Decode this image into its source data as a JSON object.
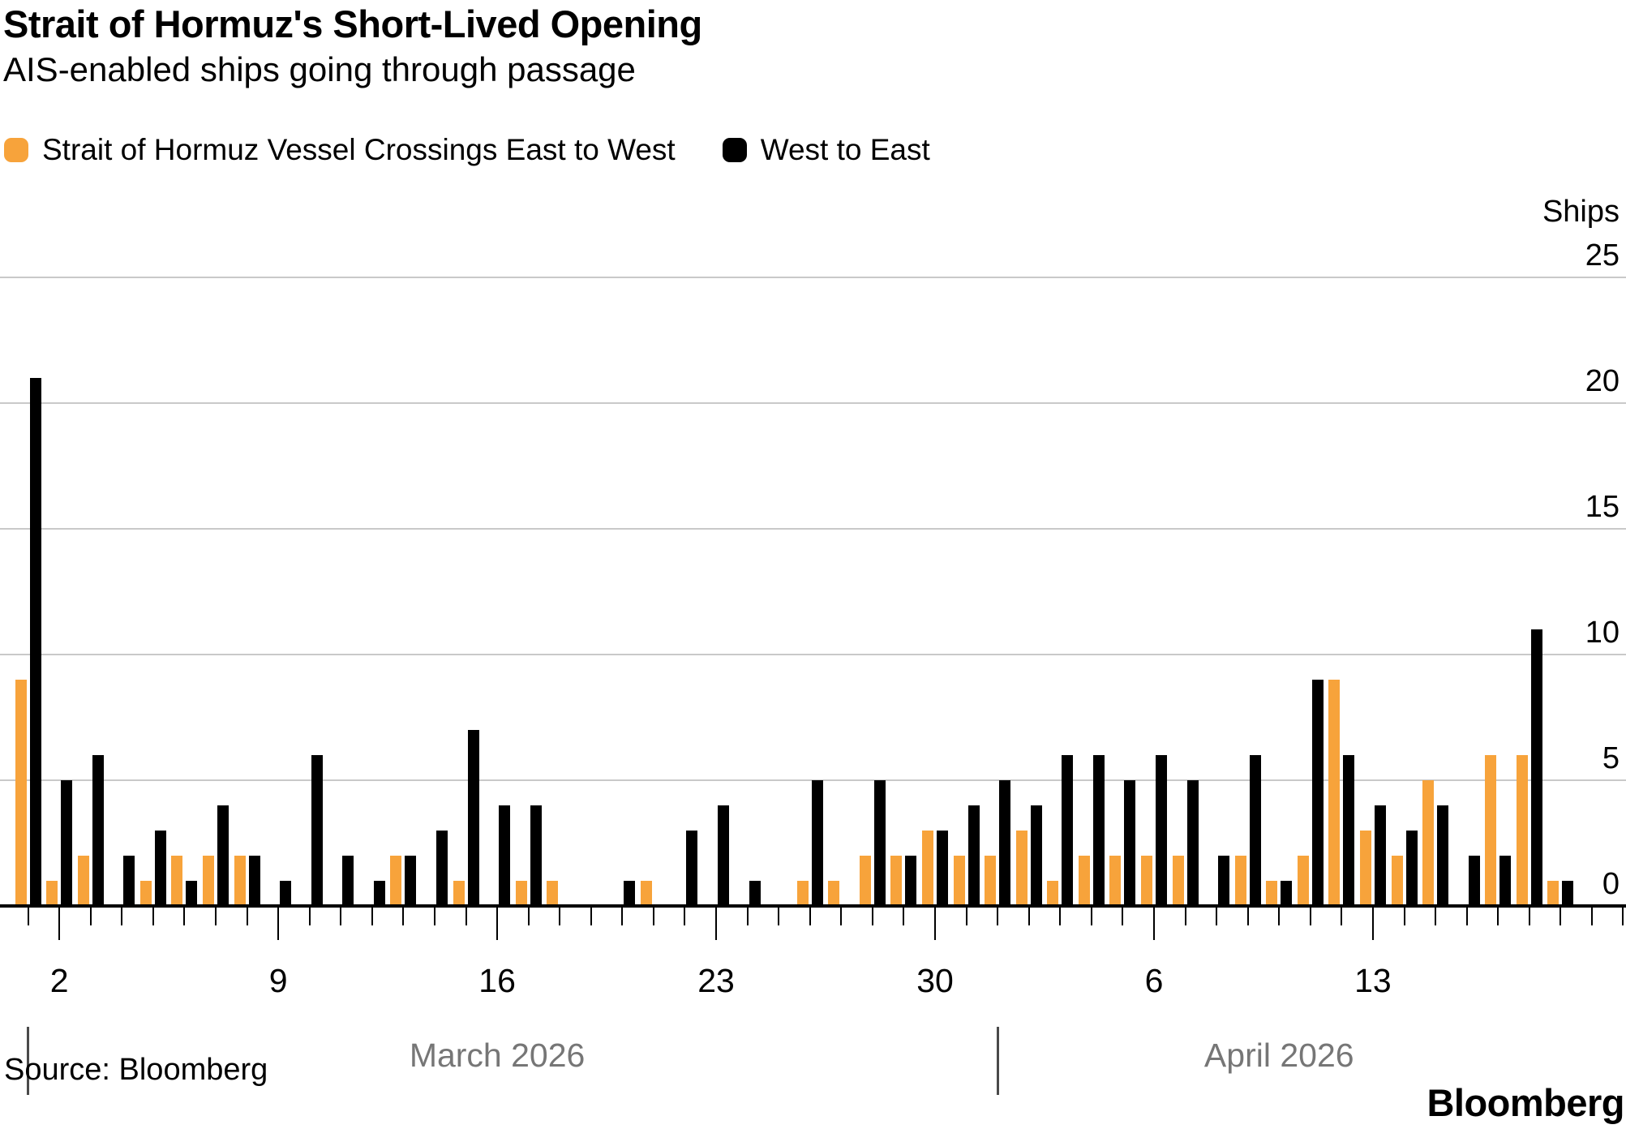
{
  "header": {
    "title": "Strait of Hormuz's Short-Lived Opening",
    "subtitle": "AIS-enabled ships going through passage"
  },
  "footer": {
    "source": "Source: Bloomberg",
    "brand": "Bloomberg"
  },
  "chart_data": {
    "type": "bar",
    "title": "Strait of Hormuz's Short-Lived Opening",
    "subtitle": "AIS-enabled ships going through passage",
    "colors": {
      "east_to_west": "#F7A33B",
      "west_to_east": "#000000",
      "gridline": "#C9C9C9",
      "axis": "#000000",
      "month_label": "#767676"
    },
    "legend": [
      {
        "series": "east_to_west",
        "label": "Strait of Hormuz Vessel Crossings East to West",
        "color": "#F7A33B"
      },
      {
        "series": "west_to_east",
        "label": "West to East",
        "color": "#000000"
      }
    ],
    "y_axis": {
      "label": "Ships",
      "ticks": [
        0,
        5,
        10,
        15,
        20,
        25
      ],
      "max": 25,
      "grid": true
    },
    "x_axis": {
      "tick_labels": [
        {
          "label": "2",
          "index": 1
        },
        {
          "label": "9",
          "index": 8
        },
        {
          "label": "16",
          "index": 15
        },
        {
          "label": "23",
          "index": 22
        },
        {
          "label": "30",
          "index": 29
        },
        {
          "label": "6",
          "index": 36
        },
        {
          "label": "13",
          "index": 43
        }
      ],
      "months": [
        {
          "label": "March 2026",
          "start_index": 0
        },
        {
          "label": "April 2026",
          "start_index": 31
        }
      ],
      "total_tick_count": 52
    },
    "series": [
      {
        "name": "Strait of Hormuz Vessel Crossings East to West",
        "key": "east_to_west"
      },
      {
        "name": "West to East",
        "key": "west_to_east"
      }
    ],
    "days": [
      {
        "date": "2026-03-01",
        "east_to_west": 9,
        "west_to_east": 21
      },
      {
        "date": "2026-03-02",
        "east_to_west": 1,
        "west_to_east": 5
      },
      {
        "date": "2026-03-03",
        "east_to_west": 2,
        "west_to_east": 6
      },
      {
        "date": "2026-03-04",
        "east_to_west": 0,
        "west_to_east": 2
      },
      {
        "date": "2026-03-05",
        "east_to_west": 1,
        "west_to_east": 3
      },
      {
        "date": "2026-03-06",
        "east_to_west": 2,
        "west_to_east": 1
      },
      {
        "date": "2026-03-07",
        "east_to_west": 2,
        "west_to_east": 4
      },
      {
        "date": "2026-03-08",
        "east_to_west": 2,
        "west_to_east": 2
      },
      {
        "date": "2026-03-09",
        "east_to_west": 0,
        "west_to_east": 1
      },
      {
        "date": "2026-03-10",
        "east_to_west": 0,
        "west_to_east": 6
      },
      {
        "date": "2026-03-11",
        "east_to_west": 0,
        "west_to_east": 2
      },
      {
        "date": "2026-03-12",
        "east_to_west": 0,
        "west_to_east": 1
      },
      {
        "date": "2026-03-13",
        "east_to_west": 2,
        "west_to_east": 2
      },
      {
        "date": "2026-03-14",
        "east_to_west": 0,
        "west_to_east": 3
      },
      {
        "date": "2026-03-15",
        "east_to_west": 1,
        "west_to_east": 7
      },
      {
        "date": "2026-03-16",
        "east_to_west": 0,
        "west_to_east": 4
      },
      {
        "date": "2026-03-17",
        "east_to_west": 1,
        "west_to_east": 4
      },
      {
        "date": "2026-03-18",
        "east_to_west": 1,
        "west_to_east": 0
      },
      {
        "date": "2026-03-19",
        "east_to_west": 0,
        "west_to_east": 0
      },
      {
        "date": "2026-03-20",
        "east_to_west": 0,
        "west_to_east": 1
      },
      {
        "date": "2026-03-21",
        "east_to_west": 1,
        "west_to_east": 0
      },
      {
        "date": "2026-03-22",
        "east_to_west": 0,
        "west_to_east": 3
      },
      {
        "date": "2026-03-23",
        "east_to_west": 0,
        "west_to_east": 4
      },
      {
        "date": "2026-03-24",
        "east_to_west": 0,
        "west_to_east": 1
      },
      {
        "date": "2026-03-25",
        "east_to_west": 0,
        "west_to_east": 0
      },
      {
        "date": "2026-03-26",
        "east_to_west": 1,
        "west_to_east": 5
      },
      {
        "date": "2026-03-27",
        "east_to_west": 1,
        "west_to_east": 0
      },
      {
        "date": "2026-03-28",
        "east_to_west": 2,
        "west_to_east": 5
      },
      {
        "date": "2026-03-29",
        "east_to_west": 2,
        "west_to_east": 2
      },
      {
        "date": "2026-03-30",
        "east_to_west": 3,
        "west_to_east": 3
      },
      {
        "date": "2026-03-31",
        "east_to_west": 2,
        "west_to_east": 4
      },
      {
        "date": "2026-04-01",
        "east_to_west": 2,
        "west_to_east": 5
      },
      {
        "date": "2026-04-02",
        "east_to_west": 3,
        "west_to_east": 4
      },
      {
        "date": "2026-04-03",
        "east_to_west": 1,
        "west_to_east": 6
      },
      {
        "date": "2026-04-04",
        "east_to_west": 2,
        "west_to_east": 6
      },
      {
        "date": "2026-04-05",
        "east_to_west": 2,
        "west_to_east": 5
      },
      {
        "date": "2026-04-06",
        "east_to_west": 2,
        "west_to_east": 6
      },
      {
        "date": "2026-04-07",
        "east_to_west": 2,
        "west_to_east": 5
      },
      {
        "date": "2026-04-08",
        "east_to_west": 0,
        "west_to_east": 2
      },
      {
        "date": "2026-04-09",
        "east_to_west": 2,
        "west_to_east": 6
      },
      {
        "date": "2026-04-10",
        "east_to_west": 1,
        "west_to_east": 1
      },
      {
        "date": "2026-04-11",
        "east_to_west": 2,
        "west_to_east": 9
      },
      {
        "date": "2026-04-12",
        "east_to_west": 9,
        "west_to_east": 6
      },
      {
        "date": "2026-04-13",
        "east_to_west": 3,
        "west_to_east": 4
      },
      {
        "date": "2026-04-14",
        "east_to_west": 2,
        "west_to_east": 3
      },
      {
        "date": "2026-04-15",
        "east_to_west": 5,
        "west_to_east": 4
      },
      {
        "date": "2026-04-16",
        "east_to_west": 0,
        "west_to_east": 2
      },
      {
        "date": "2026-04-17",
        "east_to_west": 6,
        "west_to_east": 2
      },
      {
        "date": "2026-04-18",
        "east_to_west": 6,
        "west_to_east": 11
      },
      {
        "date": "2026-04-19",
        "east_to_west": 1,
        "west_to_east": 1
      }
    ]
  }
}
